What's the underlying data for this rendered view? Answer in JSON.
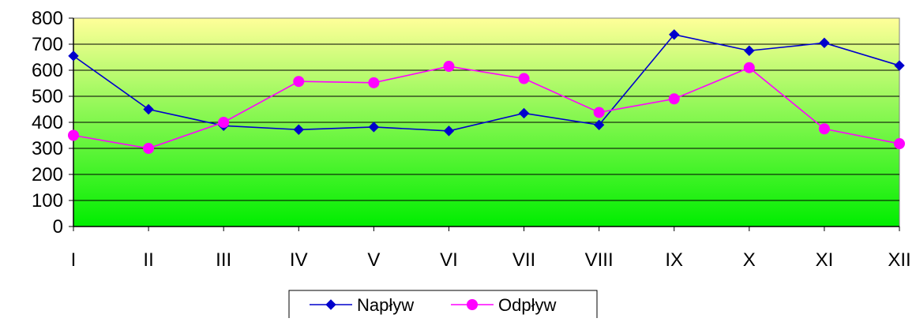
{
  "chart_data": {
    "type": "line",
    "title": "",
    "xlabel": "",
    "ylabel": "",
    "categories": [
      "I",
      "II",
      "III",
      "IV",
      "V",
      "VI",
      "VII",
      "VIII",
      "IX",
      "X",
      "XI",
      "XII"
    ],
    "ylim": [
      0,
      800
    ],
    "yticks": [
      "0",
      "100",
      "200",
      "300",
      "400",
      "500",
      "600",
      "700",
      "800"
    ],
    "grid": true,
    "legend_position": "bottom",
    "background_gradient": {
      "top": "#ffff99",
      "bottom": "#00ee00"
    },
    "series": [
      {
        "name": "Napływ",
        "color": "#0000cc",
        "marker": "diamond",
        "values": [
          655,
          450,
          387,
          372,
          382,
          367,
          435,
          390,
          737,
          675,
          705,
          618
        ]
      },
      {
        "name": "Odpływ",
        "color": "#ff00ff",
        "marker": "circle",
        "values": [
          350,
          300,
          400,
          557,
          552,
          615,
          568,
          438,
          490,
          610,
          375,
          318
        ]
      }
    ]
  }
}
